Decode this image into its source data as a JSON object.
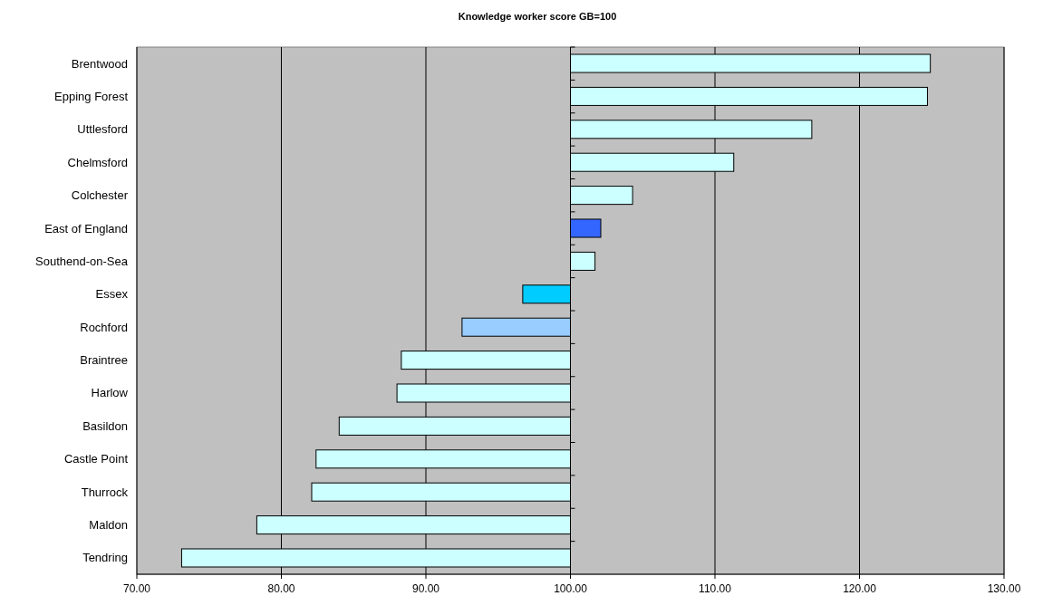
{
  "chart_data": {
    "type": "bar",
    "orientation": "horizontal",
    "title": "Knowledge worker score GB=100",
    "categories": [
      "Brentwood",
      "Epping Forest",
      "Uttlesford",
      "Chelmsford",
      "Colchester",
      "East of England",
      "Southend-on-Sea",
      "Essex",
      "Rochford",
      "Braintree",
      "Harlow",
      "Basildon",
      "Castle Point",
      "Thurrock",
      "Maldon",
      "Tendring"
    ],
    "base": [
      100,
      100,
      100,
      100,
      100,
      100,
      100,
      100,
      100,
      100,
      100,
      100,
      100,
      100,
      100,
      100
    ],
    "values": [
      24.9,
      24.7,
      16.7,
      11.3,
      4.3,
      2.1,
      1.7,
      -3.3,
      -7.5,
      -11.7,
      -12.0,
      -16.0,
      -17.6,
      -17.9,
      -21.7,
      -26.9
    ],
    "colors": [
      "#ccffff",
      "#ccffff",
      "#ccffff",
      "#ccffff",
      "#ccffff",
      "#3366ff",
      "#ccffff",
      "#00ccff",
      "#99ccff",
      "#ccffff",
      "#ccffff",
      "#ccffff",
      "#ccffff",
      "#ccffff",
      "#ccffff",
      "#ccffff"
    ],
    "xlim": [
      70,
      130
    ],
    "xticks": [
      {
        "value": 70,
        "label": "70.00"
      },
      {
        "value": 80,
        "label": "80.00"
      },
      {
        "value": 90,
        "label": "90.00"
      },
      {
        "value": 100,
        "label": "100.00"
      },
      {
        "value": 110,
        "label": "110.00"
      },
      {
        "value": 120,
        "label": "120.00"
      },
      {
        "value": 130,
        "label": "130.00"
      }
    ],
    "grid": "x"
  }
}
